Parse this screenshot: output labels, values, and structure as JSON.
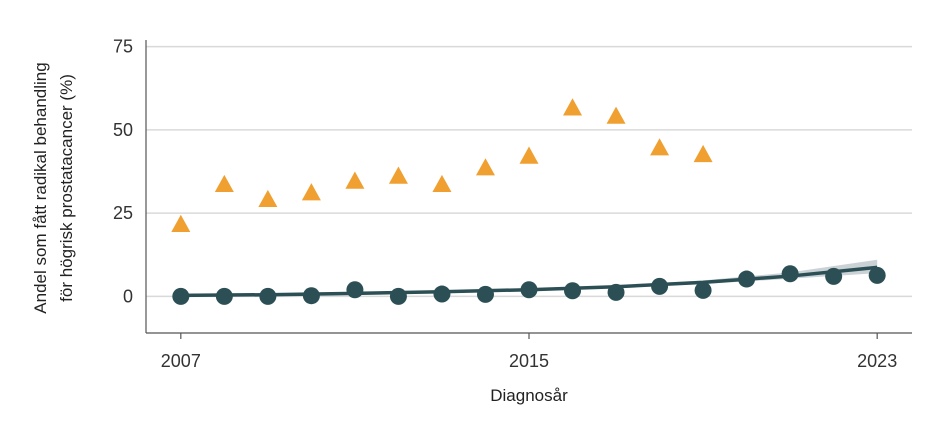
{
  "chart_data": {
    "type": "scatter",
    "xlabel": "Diagnosår",
    "ylabel_lines": [
      "Andel som fått radikal behandling",
      "för högrisk prostatacancer (%)"
    ],
    "xlim": [
      2006.2,
      2023.8
    ],
    "ylim": [
      -11,
      77
    ],
    "x_ticks": [
      2007,
      2015,
      2023
    ],
    "x_tick_labels": [
      "2007",
      "2015",
      "2023"
    ],
    "y_ticks": [
      0,
      25,
      50,
      75
    ],
    "y_tick_labels": [
      "0",
      "25",
      "50",
      "75"
    ],
    "grid": "horizontal",
    "series": [
      {
        "marker": "triangle",
        "color": "#F0A030",
        "x": [
          2007,
          2008,
          2009,
          2010,
          2011,
          2012,
          2013,
          2014,
          2015,
          2016,
          2017,
          2018,
          2019
        ],
        "y": [
          21.5,
          33.5,
          29.0,
          31.0,
          34.5,
          36.0,
          33.5,
          38.5,
          42.0,
          56.5,
          54.0,
          44.5,
          42.5
        ]
      },
      {
        "marker": "circle",
        "color": "#2B4F55",
        "x": [
          2007,
          2008,
          2009,
          2010,
          2011,
          2012,
          2013,
          2014,
          2015,
          2016,
          2017,
          2018,
          2019,
          2020,
          2021,
          2022,
          2023
        ],
        "y": [
          0.0,
          0.0,
          0.0,
          0.2,
          2.0,
          0.0,
          0.7,
          0.6,
          2.0,
          1.7,
          1.2,
          3.0,
          1.8,
          5.2,
          6.8,
          6.0,
          6.3
        ]
      }
    ],
    "trend": {
      "color": "#2B4F55",
      "band_color": "#B8C3C7",
      "x": [
        2007,
        2009,
        2011,
        2013,
        2015,
        2017,
        2019,
        2021,
        2023
      ],
      "y": [
        0.3,
        0.5,
        0.9,
        1.4,
        2.0,
        2.9,
        4.2,
        6.1,
        8.7
      ],
      "lower": [
        0.2,
        0.4,
        0.7,
        1.2,
        1.8,
        2.6,
        3.7,
        5.3,
        7.0
      ],
      "upper": [
        0.5,
        0.7,
        1.1,
        1.6,
        2.3,
        3.3,
        4.8,
        7.2,
        11.0
      ]
    }
  }
}
